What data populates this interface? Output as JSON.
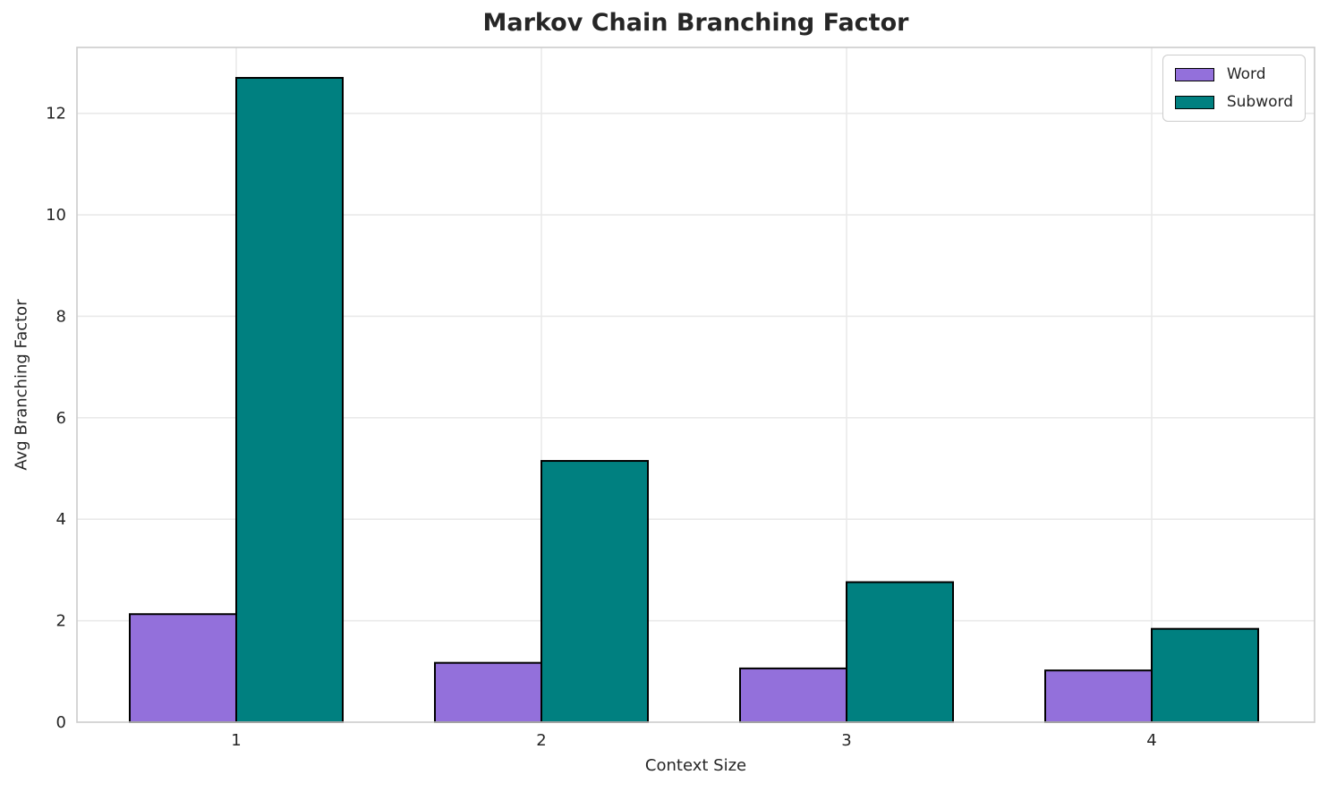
{
  "chart_data": {
    "type": "bar",
    "title": "Markov Chain Branching Factor",
    "xlabel": "Context Size",
    "ylabel": "Avg Branching Factor",
    "categories": [
      "1",
      "2",
      "3",
      "4"
    ],
    "series": [
      {
        "name": "Word",
        "color": "#9370DB",
        "values": [
          2.13,
          1.17,
          1.06,
          1.02
        ]
      },
      {
        "name": "Subword",
        "color": "#008080",
        "values": [
          12.7,
          5.15,
          2.76,
          1.84
        ]
      }
    ],
    "yticks": [
      0,
      2,
      4,
      6,
      8,
      10,
      12
    ],
    "ylim": [
      0,
      13.3
    ],
    "grid": true,
    "legend_position": "upper right",
    "bar_edge_color": "#000000",
    "colors": {
      "text": "#262626",
      "spine": "#cccccc",
      "grid": "#e9e9e9",
      "background": "#ffffff"
    }
  }
}
